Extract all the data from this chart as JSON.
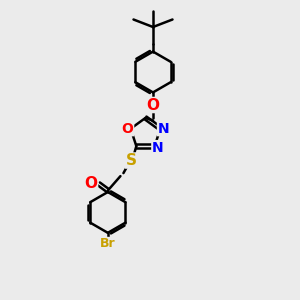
{
  "background_color": "#ebebeb",
  "bond_color": "#000000",
  "bond_width": 1.8,
  "atom_colors": {
    "O": "#ff0000",
    "N": "#0000ff",
    "S": "#c8a000",
    "Br": "#c8a000",
    "C": "#000000"
  },
  "font_size": 9,
  "fig_size": [
    3.0,
    3.0
  ],
  "dpi": 100
}
